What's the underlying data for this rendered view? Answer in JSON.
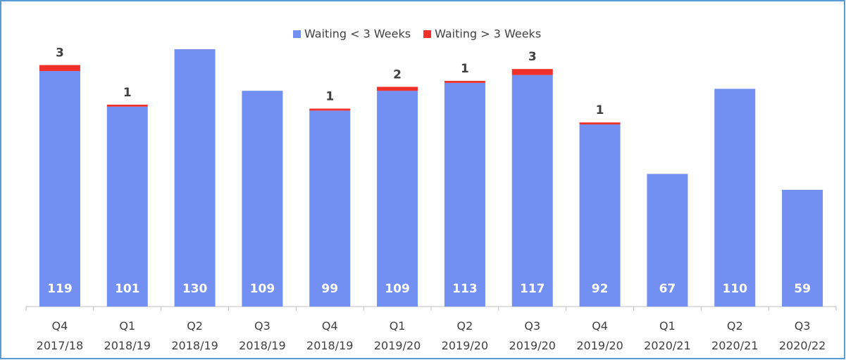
{
  "chart_data": {
    "type": "stacked_bar",
    "categories": [
      "Q4\n2017/18",
      "Q1\n2018/19",
      "Q2\n2018/19",
      "Q3\n2018/19",
      "Q4\n2018/19",
      "Q1\n2019/20",
      "Q2\n2019/20",
      "Q3\n2019/20",
      "Q4\n2019/20",
      "Q1\n2020/21",
      "Q2\n2020/21",
      "Q3\n2020/22"
    ],
    "series": [
      {
        "name": "Waiting < 3 Weeks",
        "color": "#738ff2",
        "values": [
          119,
          101,
          130,
          109,
          99,
          109,
          113,
          117,
          92,
          67,
          110,
          59
        ]
      },
      {
        "name": "Waiting > 3 Weeks",
        "color": "#f0312a",
        "values": [
          3,
          1,
          0,
          0,
          1,
          2,
          1,
          3,
          1,
          0,
          0,
          0
        ]
      }
    ],
    "legend": "top"
  }
}
